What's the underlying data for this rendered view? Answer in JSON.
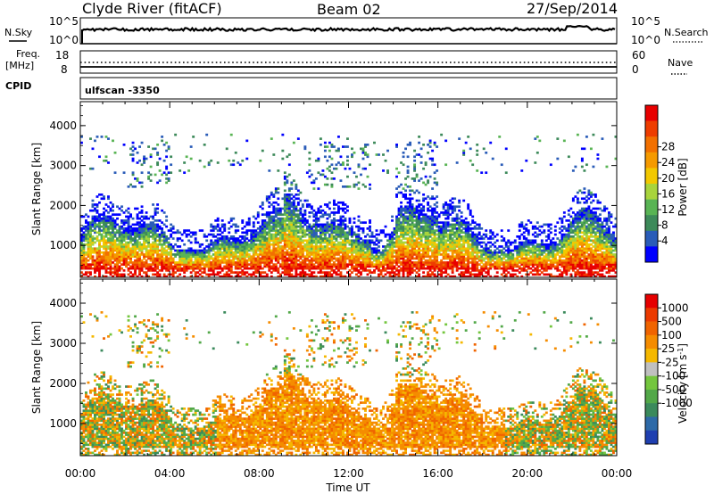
{
  "header": {
    "station": "Clyde River (fitACF)",
    "beam": "Beam 02",
    "date": "27/Sep/2014"
  },
  "panels": {
    "nsky": {
      "label": "N.Sky",
      "tick_top": "10^5",
      "tick_bottom": "10^0"
    },
    "nsearch": {
      "label": "N.Search",
      "tick_top": "10^5",
      "tick_bottom": "10^0"
    },
    "freq": {
      "label_line1": "Freq.",
      "label_line2": "[MHz]",
      "tick_top": "18",
      "tick_bottom": "8"
    },
    "nave": {
      "label": "Nave",
      "tick_top": "60",
      "tick_bottom": "0"
    },
    "cpid": {
      "label": "CPID",
      "scan_text": "ulfscan -3350"
    }
  },
  "chart_data": [
    {
      "type": "heatmap",
      "name": "Power",
      "ylabel": "Slant Range [km]",
      "xlabel": "",
      "y_ticks": [
        "1000",
        "2000",
        "3000",
        "4000"
      ],
      "x_ticks": [
        "00:00",
        "04:00",
        "08:00",
        "12:00",
        "16:00",
        "20:00",
        "00:00"
      ],
      "ylim_km": [
        200,
        4600
      ],
      "xlim_hours": [
        0,
        24
      ],
      "colorbar": {
        "label": "Power [dB]",
        "ticks": [
          "4",
          "8",
          "12",
          "16",
          "20",
          "24",
          "28"
        ],
        "colors": [
          "#0000ff",
          "#2a5cb8",
          "#3d8a5a",
          "#59b454",
          "#a8d43c",
          "#f2c800",
          "#f59a00",
          "#f27000",
          "#ee3d00",
          "#e80000"
        ]
      }
    },
    {
      "type": "heatmap",
      "name": "Velocity",
      "ylabel": "Slant Range [km]",
      "xlabel": "Time UT",
      "y_ticks": [
        "1000",
        "2000",
        "3000",
        "4000"
      ],
      "x_ticks": [
        "00:00",
        "04:00",
        "08:00",
        "12:00",
        "16:00",
        "20:00",
        "00:00"
      ],
      "ylim_km": [
        200,
        4600
      ],
      "xlim_hours": [
        0,
        24
      ],
      "colorbar": {
        "label": "Velocity [m s^-1]",
        "ticks": [
          "1000",
          "500",
          "100",
          "25",
          "-25",
          "-100",
          "-500",
          "-1000"
        ],
        "colors": [
          "#1f3fb0",
          "#2e6aa8",
          "#3b8a5c",
          "#52a848",
          "#74c63e",
          "#c0c0c0",
          "#f5b800",
          "#f58c00",
          "#f06400",
          "#ec3a00",
          "#e60000"
        ]
      }
    }
  ]
}
